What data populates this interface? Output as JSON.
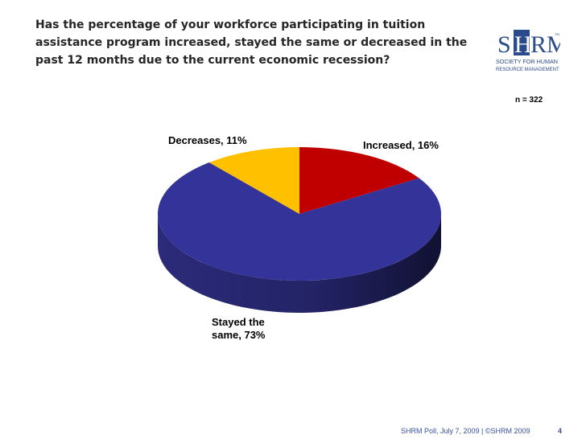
{
  "title": "Has the percentage of your workforce participating in tuition assistance program increased, stayed the same or decreased in the past 12 months due to the current economic recession?",
  "sample_size": "n = 322",
  "logo": {
    "letters_left": "S",
    "letters_mid": "H",
    "letters_right": "RM",
    "tm": "TM",
    "line1": "SOCIETY FOR HUMAN",
    "line2": "RESOURCE MANAGEMENT",
    "color": "#2a4a8b"
  },
  "chart_data": {
    "type": "pie",
    "title": "",
    "slices": [
      {
        "label": "Increased, 16%",
        "value": 16,
        "color": "#c00000"
      },
      {
        "label": "Stayed the same, 73%",
        "value": 73,
        "color": "#333399"
      },
      {
        "label": "Decreases, 11%",
        "value": 11,
        "color": "#ffc000"
      }
    ],
    "labels_display": {
      "increased": "Increased, 16%",
      "stayed_line1": "Stayed the",
      "stayed_line2": "same, 73%",
      "decreases": "Decreases, 11%"
    }
  },
  "footer": {
    "source": "SHRM Poll, July 7, 2009 | ©SHRM 2009",
    "page": "4"
  }
}
